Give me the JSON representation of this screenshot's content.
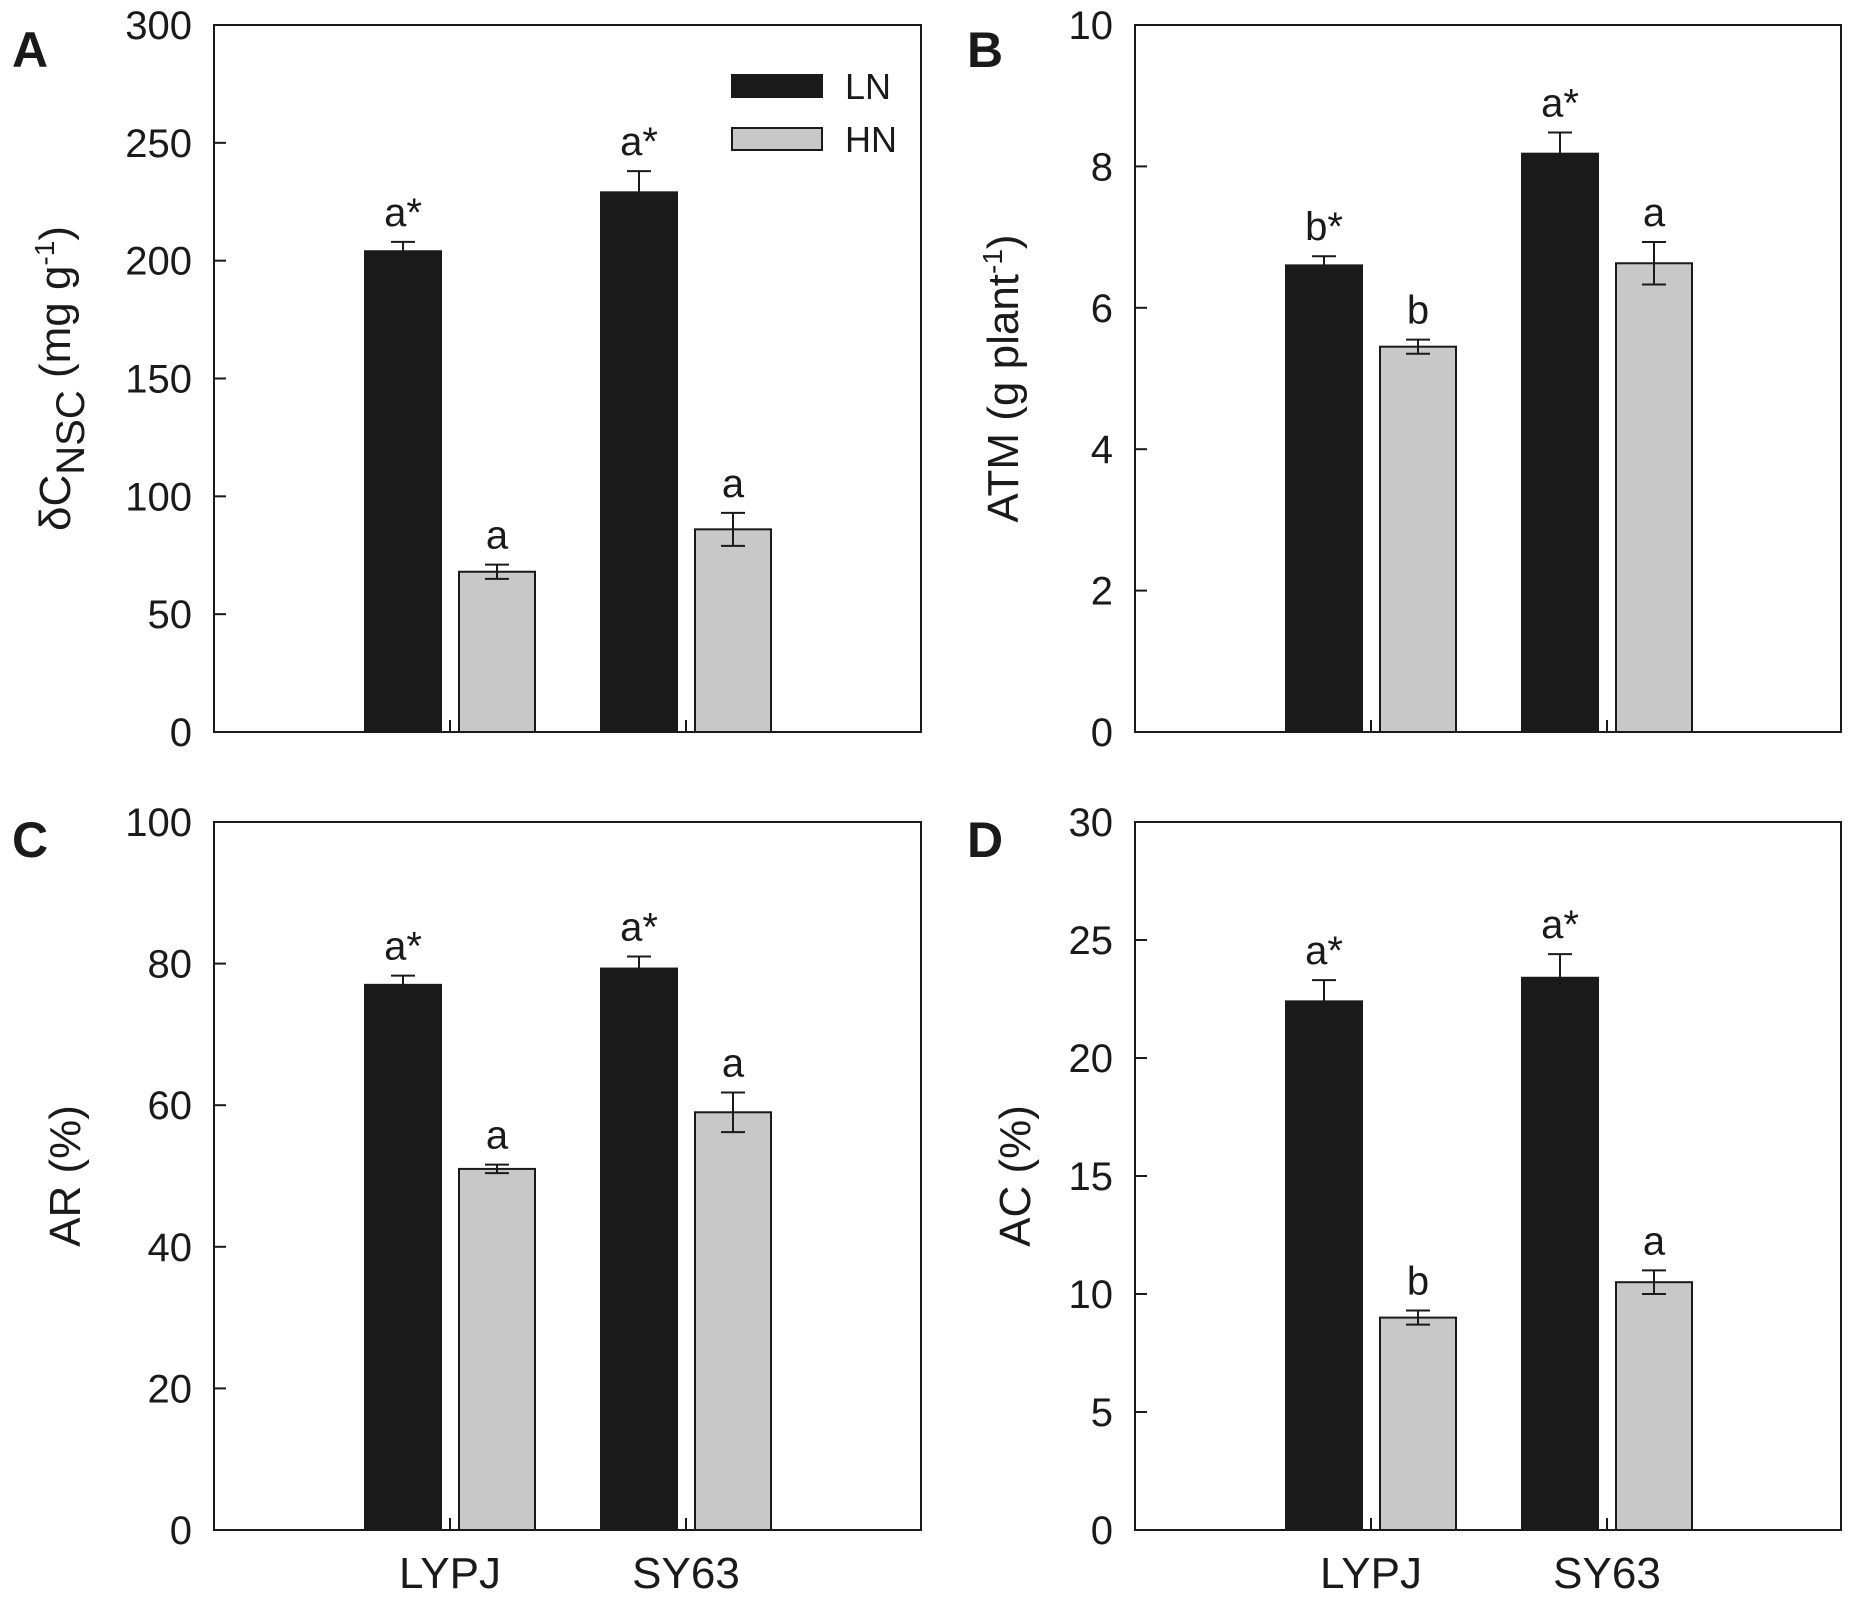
{
  "colors": {
    "LN": "#1a1a1a",
    "HN": "#c8c8c8",
    "axis": "#1a1a1a"
  },
  "legend": {
    "placement": "top-right of panel A",
    "entries": [
      {
        "name": "LN"
      },
      {
        "name": "HN"
      }
    ]
  },
  "chart_data": [
    {
      "panel": "A",
      "type": "bar",
      "categories": [
        "LYPJ",
        "SY63"
      ],
      "category_labels_shown": false,
      "ylabel": {
        "main": "δC",
        "sub": "NSC",
        "unit_before": " (mg g",
        "sup": "-1",
        "unit_after": ")"
      },
      "ylim": [
        0,
        300
      ],
      "yticks": [
        0,
        50,
        100,
        150,
        200,
        250,
        300
      ],
      "series": [
        {
          "name": "LN",
          "values": [
            204,
            229
          ],
          "errors": [
            4,
            9
          ],
          "labels": [
            "a*",
            "a*"
          ]
        },
        {
          "name": "HN",
          "values": [
            68,
            86
          ],
          "errors": [
            3,
            7
          ],
          "labels": [
            "a",
            "a"
          ]
        }
      ]
    },
    {
      "panel": "B",
      "type": "bar",
      "categories": [
        "LYPJ",
        "SY63"
      ],
      "category_labels_shown": false,
      "ylabel": {
        "main": "ATM",
        "sub": "",
        "unit_before": " (g plant",
        "sup": "-1",
        "unit_after": ")"
      },
      "ylim": [
        0,
        10
      ],
      "yticks": [
        0,
        2,
        4,
        6,
        8,
        10
      ],
      "series": [
        {
          "name": "LN",
          "values": [
            6.6,
            8.18
          ],
          "errors": [
            0.13,
            0.3
          ],
          "labels": [
            "b*",
            "a*"
          ]
        },
        {
          "name": "HN",
          "values": [
            5.45,
            6.63
          ],
          "errors": [
            0.1,
            0.3
          ],
          "labels": [
            "b",
            "a"
          ]
        }
      ]
    },
    {
      "panel": "C",
      "type": "bar",
      "categories": [
        "LYPJ",
        "SY63"
      ],
      "category_labels_shown": true,
      "ylabel": {
        "main": "AR (%)",
        "sub": "",
        "unit_before": "",
        "sup": "",
        "unit_after": ""
      },
      "ylim": [
        0,
        100
      ],
      "yticks": [
        0,
        20,
        40,
        60,
        80,
        100
      ],
      "series": [
        {
          "name": "LN",
          "values": [
            77,
            79.3
          ],
          "errors": [
            1.3,
            1.7
          ],
          "labels": [
            "a*",
            "a*"
          ]
        },
        {
          "name": "HN",
          "values": [
            51,
            59
          ],
          "errors": [
            0.6,
            2.8
          ],
          "labels": [
            "a",
            "a"
          ]
        }
      ]
    },
    {
      "panel": "D",
      "type": "bar",
      "categories": [
        "LYPJ",
        "SY63"
      ],
      "category_labels_shown": true,
      "ylabel": {
        "main": "AC (%)",
        "sub": "",
        "unit_before": "",
        "sup": "",
        "unit_after": ""
      },
      "ylim": [
        0,
        30
      ],
      "yticks": [
        0,
        5,
        10,
        15,
        20,
        25,
        30
      ],
      "series": [
        {
          "name": "LN",
          "values": [
            22.4,
            23.4
          ],
          "errors": [
            0.9,
            1.0
          ],
          "labels": [
            "a*",
            "a*"
          ]
        },
        {
          "name": "HN",
          "values": [
            9.0,
            10.5
          ],
          "errors": [
            0.3,
            0.5
          ],
          "labels": [
            "b",
            "a"
          ]
        }
      ]
    }
  ]
}
